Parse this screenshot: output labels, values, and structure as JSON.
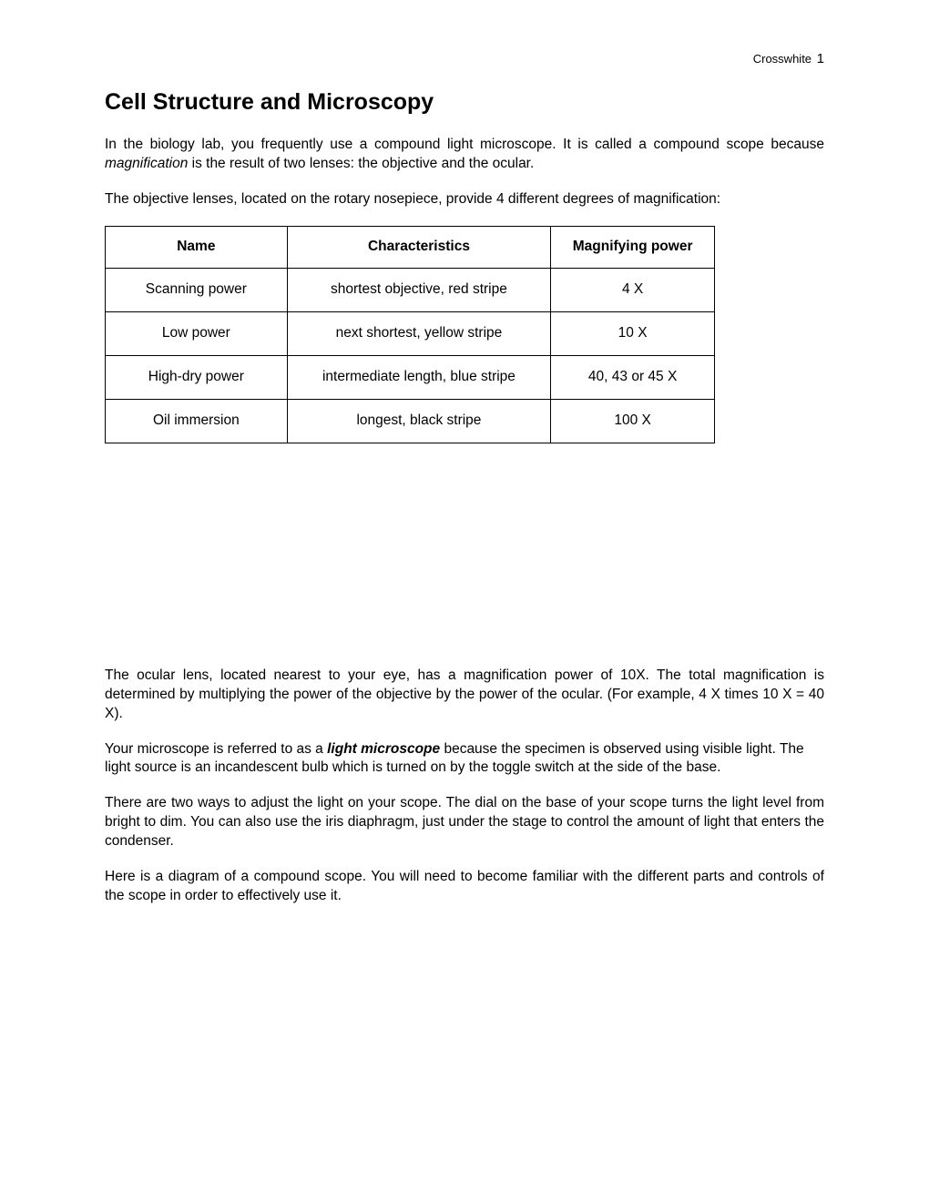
{
  "header": {
    "author": "Crosswhite",
    "pageNumber": "1"
  },
  "title": "Cell Structure and Microscopy",
  "para1_a": "In the biology lab, you frequently use a compound light microscope. It is called a compound scope because ",
  "para1_b": "magnification",
  "para1_c": " is the result of two lenses: the objective and the ocular.",
  "para2": "The objective lenses, located on the rotary nosepiece, provide 4 different degrees of magnification:",
  "table": {
    "columns": [
      "Name",
      "Characteristics",
      "Magnifying power"
    ],
    "rows": [
      [
        "Scanning power",
        "shortest objective, red stripe",
        "4 X"
      ],
      [
        "Low power",
        "next shortest, yellow stripe",
        "10 X"
      ],
      [
        "High-dry power",
        "intermediate length, blue stripe",
        "40, 43 or 45 X"
      ],
      [
        "Oil immersion",
        "longest, black stripe",
        "100 X"
      ]
    ]
  },
  "para3": "The ocular lens, located nearest to your eye, has a magnification power of 10X.  The total magnification is determined by multiplying the power of the objective by the power of the ocular. (For example, 4 X times 10 X = 40 X).",
  "para4_a": "Your microscope is referred to as a ",
  "para4_b": "light microscope",
  "para4_c": " because the specimen is observed using visible light.  The light source is an incandescent bulb which is turned on by the toggle switch at the side of the base.",
  "para5": "There are two ways to adjust the light on your scope. The dial on the base of your scope turns the light level from bright to dim. You can also use the iris diaphragm, just under the stage to control the amount of light that enters the condenser.",
  "para6": "Here is a diagram of a compound scope. You will need to become familiar with the different parts and controls of the scope in order to effectively use it."
}
